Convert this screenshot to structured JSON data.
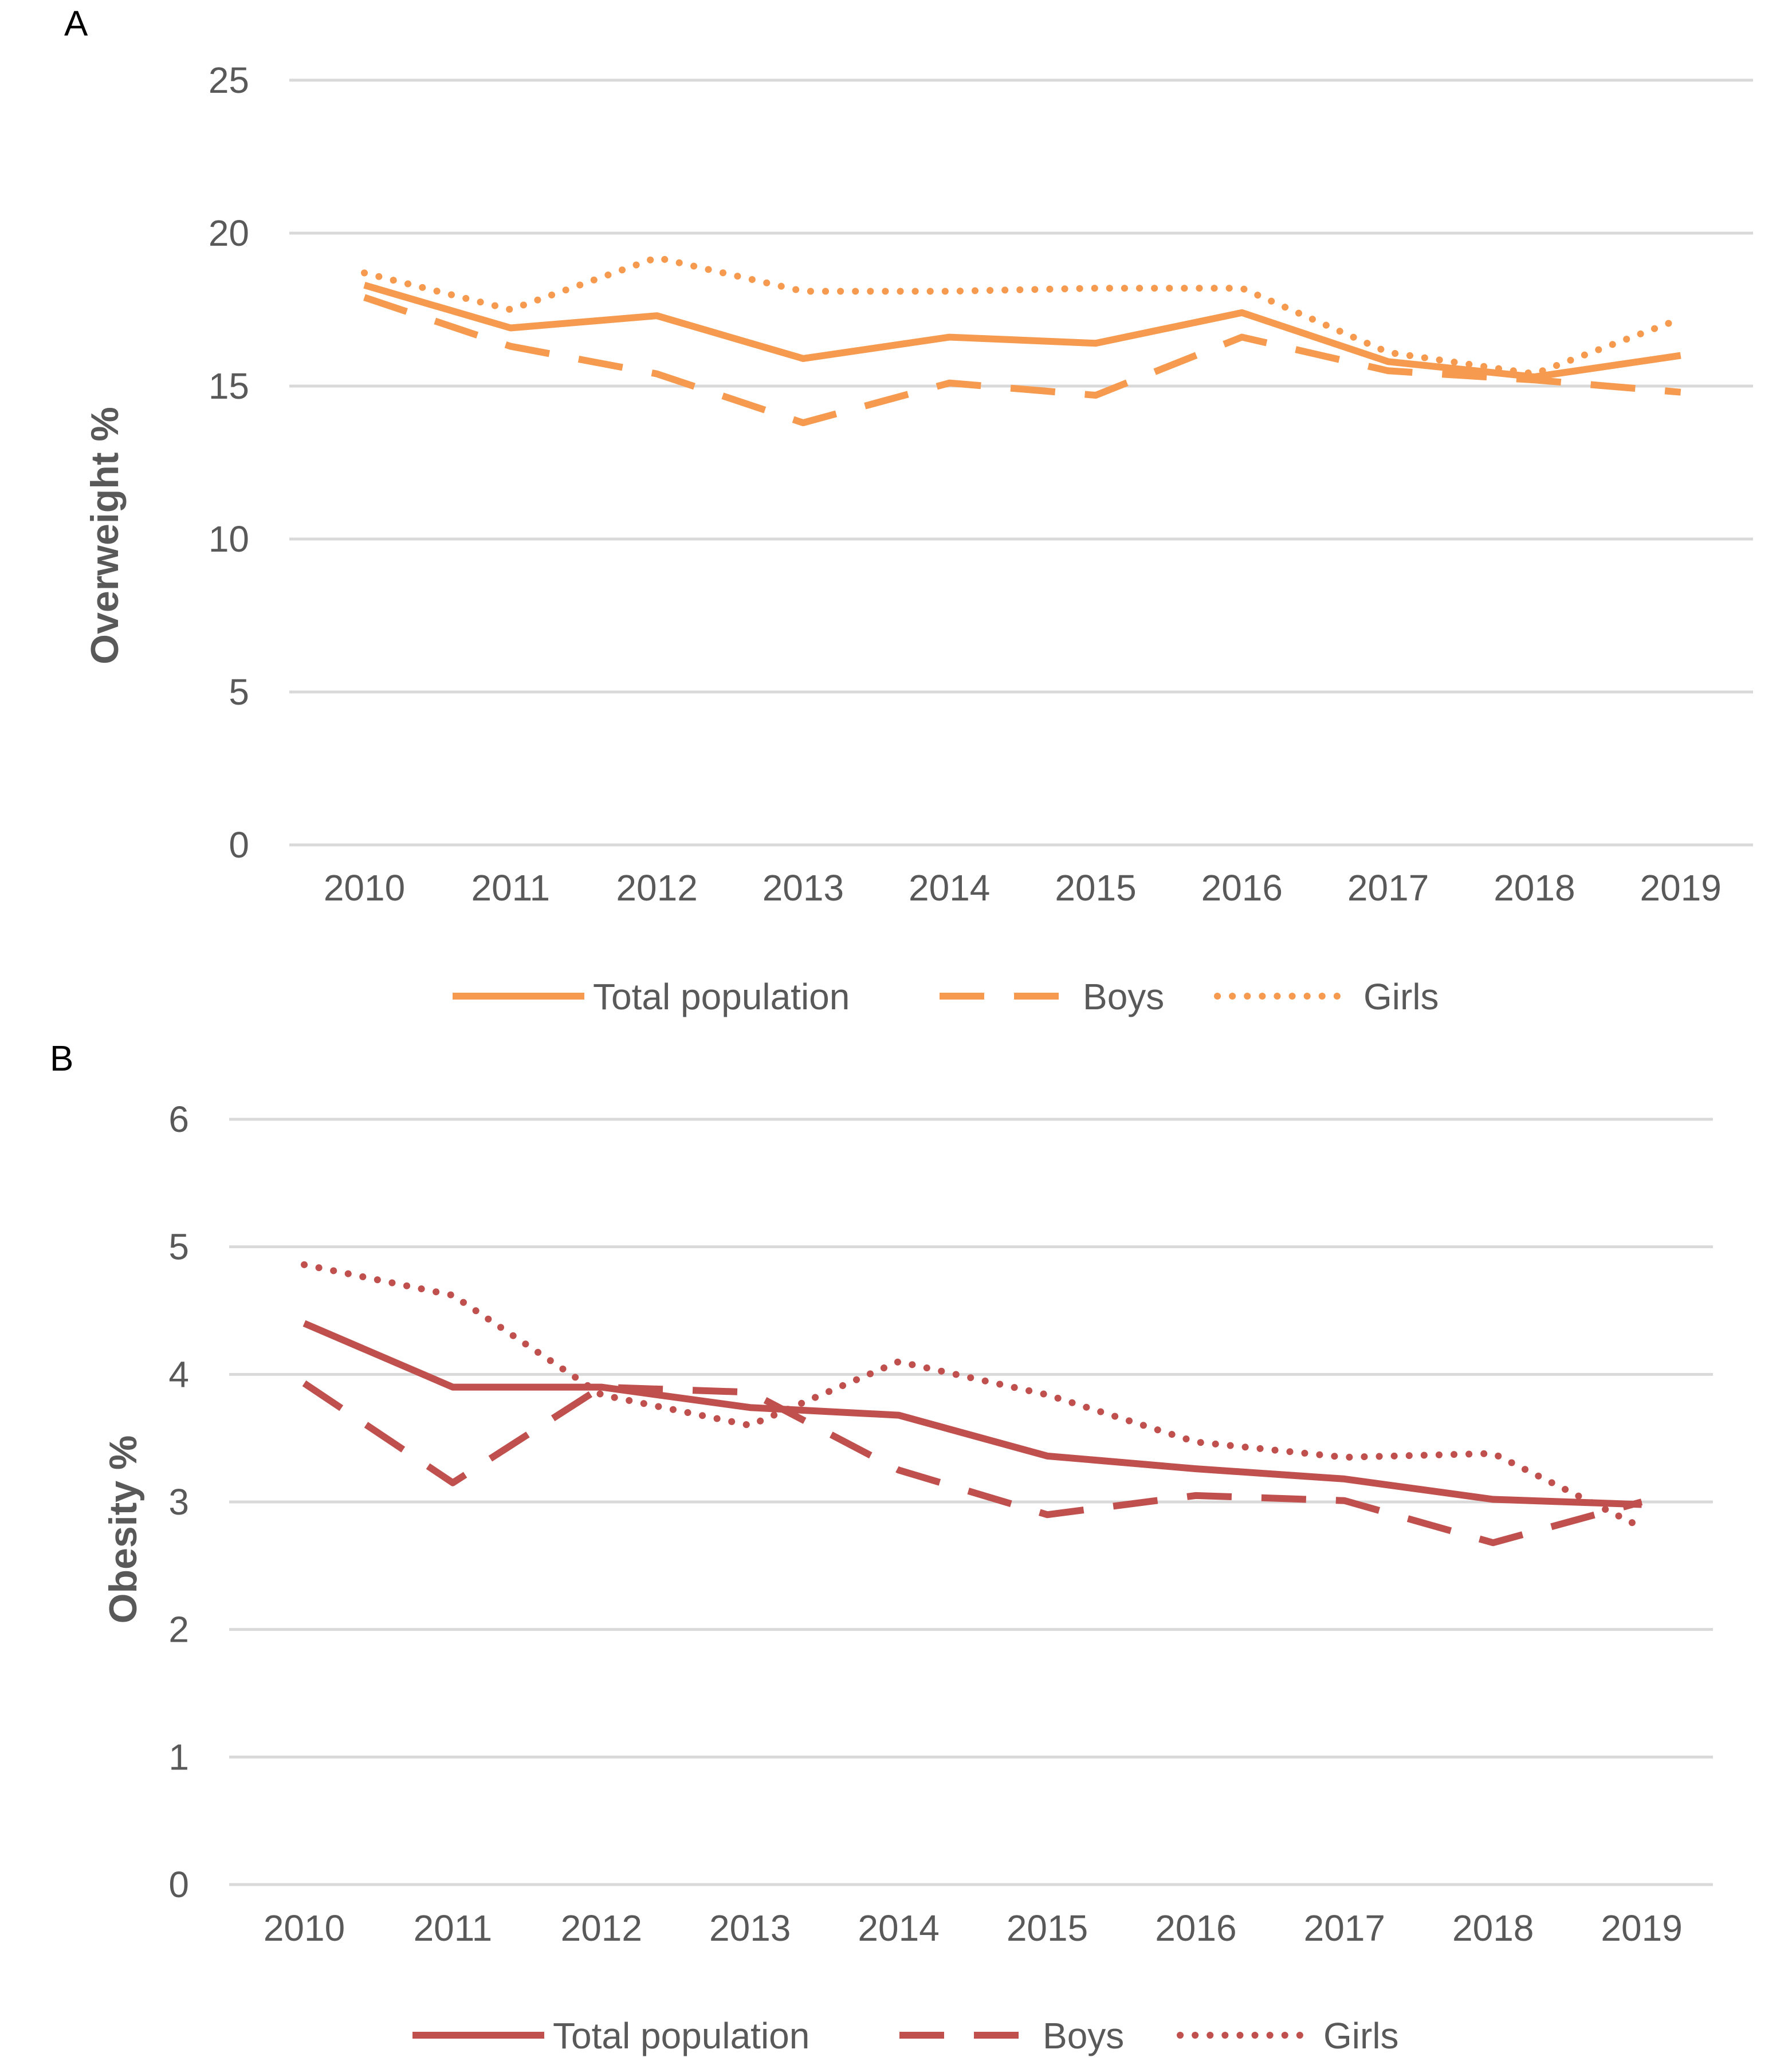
{
  "chart_data": [
    {
      "type": "line",
      "panel_label": "A",
      "title": "",
      "xlabel": "",
      "ylabel": "Overweight %",
      "ylim": [
        0,
        25
      ],
      "yticks": [
        "0",
        "5",
        "10",
        "15",
        "20",
        "25"
      ],
      "grid": "horizontal",
      "legend": "bottom",
      "color": "#F59A4E",
      "categories": [
        "2010",
        "2011",
        "2012",
        "2013",
        "2014",
        "2015",
        "2016",
        "2017",
        "2018",
        "2019"
      ],
      "series": [
        {
          "name": "Total population",
          "style": "solid",
          "values": [
            18.3,
            16.9,
            17.3,
            15.9,
            16.6,
            16.4,
            17.4,
            15.8,
            15.3,
            16.0
          ]
        },
        {
          "name": "Boys",
          "style": "dashed",
          "values": [
            17.9,
            16.3,
            15.4,
            13.8,
            15.1,
            14.7,
            16.6,
            15.5,
            15.2,
            14.8
          ]
        },
        {
          "name": "Girls",
          "style": "dotted",
          "values": [
            18.7,
            17.5,
            19.2,
            18.1,
            18.1,
            18.2,
            18.2,
            16.1,
            15.4,
            17.2
          ]
        }
      ]
    },
    {
      "type": "line",
      "panel_label": "B",
      "title": "",
      "xlabel": "",
      "ylabel": "Obesity %",
      "ylim": [
        0,
        6
      ],
      "yticks": [
        "0",
        "1",
        "2",
        "3",
        "4",
        "5",
        "6"
      ],
      "grid": "horizontal",
      "legend": "bottom",
      "color": "#C0504D",
      "categories": [
        "2010",
        "2011",
        "2012",
        "2013",
        "2014",
        "2015",
        "2016",
        "2017",
        "2018",
        "2019"
      ],
      "series": [
        {
          "name": "Total population",
          "style": "solid",
          "values": [
            4.4,
            3.9,
            3.9,
            3.74,
            3.68,
            3.36,
            3.26,
            3.18,
            3.02,
            2.98
          ]
        },
        {
          "name": "Boys",
          "style": "dashed",
          "values": [
            3.93,
            3.15,
            3.9,
            3.86,
            3.25,
            2.9,
            3.05,
            3.01,
            2.68,
            3.0
          ]
        },
        {
          "name": "Girls",
          "style": "dotted",
          "values": [
            4.86,
            4.62,
            3.84,
            3.6,
            4.1,
            3.84,
            3.47,
            3.35,
            3.38,
            2.8
          ]
        }
      ]
    }
  ]
}
